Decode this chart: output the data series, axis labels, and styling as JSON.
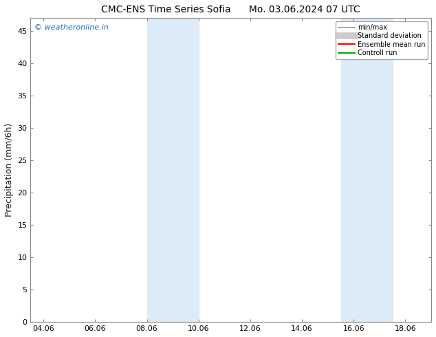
{
  "title_left": "CMC-ENS Time Series Sofia",
  "title_right": "Mo. 03.06.2024 07 UTC",
  "ylabel": "Precipitation (mm/6h)",
  "xlabel": "",
  "xlim": [
    3.5,
    19.0
  ],
  "ylim": [
    0,
    47
  ],
  "yticks": [
    0,
    5,
    10,
    15,
    20,
    25,
    30,
    35,
    40,
    45
  ],
  "xtick_labels": [
    "04.06",
    "06.06",
    "08.06",
    "10.06",
    "12.06",
    "14.06",
    "16.06",
    "18.06"
  ],
  "xtick_positions": [
    4,
    6,
    8,
    10,
    12,
    14,
    16,
    18
  ],
  "shaded_bands": [
    {
      "x_start": 8.0,
      "x_end": 10.0
    },
    {
      "x_start": 15.5,
      "x_end": 17.5
    }
  ],
  "shaded_color": "#ddeaf7",
  "background_color": "#ffffff",
  "plot_bg_color": "#ffffff",
  "watermark_text": "© weatheronline.in",
  "watermark_color": "#1a6ec0",
  "legend_entries": [
    {
      "label": "min/max",
      "color": "#999999",
      "linewidth": 1.2
    },
    {
      "label": "Standard deviation",
      "color": "#cccccc",
      "linewidth": 7
    },
    {
      "label": "Ensemble mean run",
      "color": "#ff0000",
      "linewidth": 1.5
    },
    {
      "label": "Controll run",
      "color": "#00aa00",
      "linewidth": 1.5
    }
  ],
  "title_fontsize": 10,
  "axis_label_fontsize": 9,
  "tick_fontsize": 8,
  "watermark_fontsize": 8,
  "legend_fontsize": 7,
  "spine_color": "#888888",
  "tick_color": "#444444"
}
